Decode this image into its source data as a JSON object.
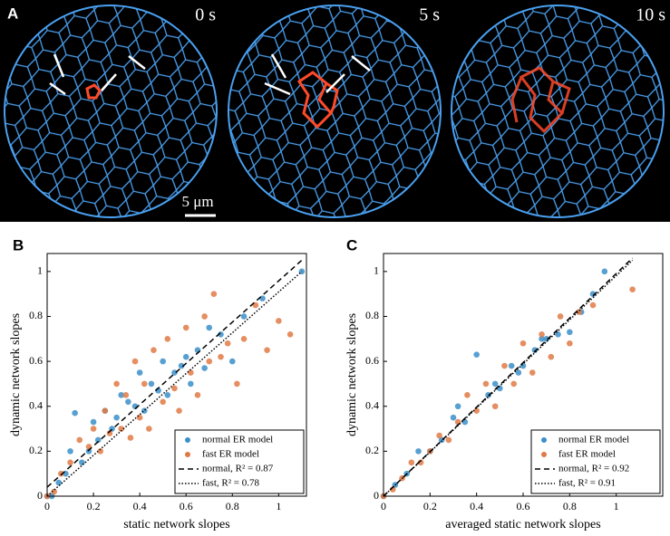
{
  "panel_a": {
    "label": "A",
    "times": [
      "0 s",
      "5 s",
      "10 s"
    ],
    "scale_bar": "5 μm"
  },
  "chart_data": [
    {
      "type": "scatter",
      "panel": "B",
      "xlabel": "static network slopes",
      "ylabel": "dynamic network slopes",
      "xlim": [
        0,
        1.12
      ],
      "ylim": [
        0,
        1.08
      ],
      "xticks": [
        0,
        0.2,
        0.4,
        0.6,
        0.8,
        1
      ],
      "yticks": [
        0,
        0.2,
        0.4,
        0.6,
        0.8,
        1
      ],
      "legend": "lower right",
      "series": [
        {
          "name": "normal ER model",
          "color": "#3b8fc9",
          "style": "marker",
          "x": [
            0,
            0.02,
            0.05,
            0.08,
            0.1,
            0.12,
            0.15,
            0.18,
            0.2,
            0.22,
            0.25,
            0.28,
            0.3,
            0.32,
            0.35,
            0.38,
            0.4,
            0.42,
            0.45,
            0.48,
            0.5,
            0.52,
            0.55,
            0.58,
            0.6,
            0.62,
            0.65,
            0.68,
            0.7,
            0.75,
            0.8,
            0.85,
            0.93,
            1.1
          ],
          "y": [
            0,
            0,
            0.06,
            0.1,
            0.2,
            0.37,
            0.15,
            0.2,
            0.33,
            0.25,
            0.38,
            0.3,
            0.35,
            0.45,
            0.42,
            0.4,
            0.55,
            0.38,
            0.5,
            0.47,
            0.6,
            0.45,
            0.55,
            0.58,
            0.62,
            0.5,
            0.65,
            0.57,
            0.75,
            0.72,
            0.6,
            0.8,
            0.88,
            1.0
          ]
        },
        {
          "name": "fast ER model",
          "color": "#e07a45",
          "style": "marker",
          "x": [
            0,
            0.03,
            0.06,
            0.1,
            0.14,
            0.18,
            0.2,
            0.23,
            0.25,
            0.27,
            0.3,
            0.32,
            0.34,
            0.36,
            0.38,
            0.4,
            0.42,
            0.44,
            0.46,
            0.5,
            0.52,
            0.55,
            0.57,
            0.6,
            0.62,
            0.65,
            0.68,
            0.7,
            0.72,
            0.75,
            0.78,
            0.82,
            0.85,
            0.9,
            0.95,
            1.0,
            1.05
          ],
          "y": [
            0,
            0.02,
            0.1,
            0.15,
            0.25,
            0.22,
            0.3,
            0.2,
            0.38,
            0.28,
            0.5,
            0.3,
            0.45,
            0.26,
            0.6,
            0.35,
            0.5,
            0.3,
            0.65,
            0.42,
            0.7,
            0.48,
            0.38,
            0.75,
            0.55,
            0.45,
            0.8,
            0.6,
            0.9,
            0.62,
            0.68,
            0.5,
            0.7,
            0.85,
            0.65,
            0.78,
            0.72
          ]
        },
        {
          "name": "normal, R² = 0.87",
          "color": "#000000",
          "style": "dashed",
          "x": [
            0,
            1.1
          ],
          "y": [
            0.04,
            1.05
          ]
        },
        {
          "name": "fast, R² = 0.78",
          "color": "#000000",
          "style": "dotted",
          "x": [
            0,
            1.1
          ],
          "y": [
            0,
            1.0
          ]
        }
      ]
    },
    {
      "type": "scatter",
      "panel": "C",
      "xlabel": "averaged static network slopes",
      "ylabel": "dynamic network slopes",
      "xlim": [
        0,
        1.2
      ],
      "ylim": [
        0,
        1.08
      ],
      "xticks": [
        0,
        0.2,
        0.4,
        0.6,
        0.8,
        1
      ],
      "yticks": [
        0,
        0.2,
        0.4,
        0.6,
        0.8,
        1
      ],
      "legend": "lower right",
      "series": [
        {
          "name": "normal ER model",
          "color": "#3b8fc9",
          "style": "marker",
          "x": [
            0,
            0.05,
            0.1,
            0.15,
            0.2,
            0.25,
            0.3,
            0.35,
            0.4,
            0.45,
            0.5,
            0.55,
            0.6,
            0.65,
            0.7,
            0.75,
            0.8,
            0.85,
            0.9,
            0.95,
            0.32,
            0.48,
            0.58,
            0.68
          ],
          "y": [
            0,
            0.05,
            0.1,
            0.2,
            0.2,
            0.25,
            0.35,
            0.33,
            0.63,
            0.45,
            0.48,
            0.58,
            0.58,
            0.65,
            0.7,
            0.72,
            0.73,
            0.82,
            0.9,
            1.0,
            0.4,
            0.5,
            0.55,
            0.7
          ]
        },
        {
          "name": "fast ER model",
          "color": "#e07a45",
          "style": "marker",
          "x": [
            0,
            0.04,
            0.08,
            0.12,
            0.16,
            0.2,
            0.24,
            0.28,
            0.32,
            0.36,
            0.4,
            0.44,
            0.48,
            0.52,
            0.56,
            0.6,
            0.64,
            0.68,
            0.72,
            0.76,
            0.8,
            0.84,
            0.9,
            1.07
          ],
          "y": [
            0,
            0.03,
            0.08,
            0.15,
            0.15,
            0.2,
            0.27,
            0.25,
            0.33,
            0.45,
            0.38,
            0.5,
            0.4,
            0.58,
            0.5,
            0.68,
            0.55,
            0.72,
            0.62,
            0.8,
            0.68,
            0.82,
            0.85,
            0.92
          ]
        },
        {
          "name": "normal, R² = 0.92",
          "color": "#000000",
          "style": "dashed",
          "x": [
            0,
            1.07
          ],
          "y": [
            0,
            1.06
          ]
        },
        {
          "name": "fast, R² = 0.91",
          "color": "#000000",
          "style": "dotted",
          "x": [
            0,
            1.07
          ],
          "y": [
            0,
            1.05
          ]
        }
      ]
    }
  ]
}
